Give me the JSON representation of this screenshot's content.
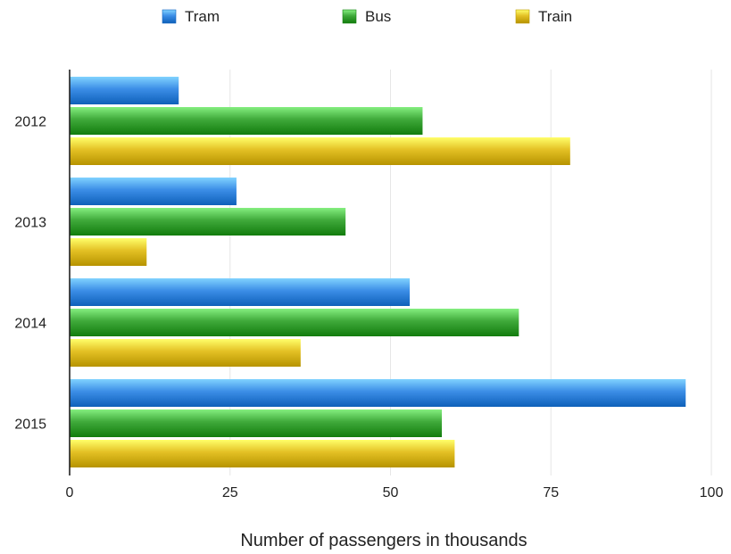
{
  "chart_data": {
    "type": "bar",
    "orientation": "horizontal",
    "title": "",
    "categories": [
      "2012",
      "2013",
      "2014",
      "2015"
    ],
    "series": [
      {
        "name": "Tram",
        "color": "#3b8de6",
        "values": [
          17,
          26,
          53,
          96
        ]
      },
      {
        "name": "Bus",
        "color": "#3fa93a",
        "values": [
          55,
          43,
          70,
          58
        ]
      },
      {
        "name": "Train",
        "color": "#e3c024",
        "values": [
          78,
          12,
          36,
          60
        ]
      }
    ],
    "xlabel": "Number of passengers in thousands",
    "ylabel": "",
    "xlim": [
      0,
      100
    ],
    "x_ticks": [
      "0",
      "25",
      "50",
      "75",
      "100"
    ],
    "grid": true,
    "legend_position": "top"
  }
}
